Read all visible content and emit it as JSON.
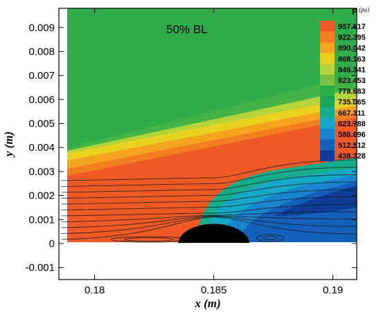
{
  "chart_data": {
    "type": "heatmap",
    "title": "",
    "annotation": "50% BL",
    "xlabel": "x (m)",
    "ylabel": "y (m)",
    "xlim": [
      0.1785,
      0.191
    ],
    "ylim": [
      -0.0015,
      0.0098
    ],
    "x_ticks": [
      0.18,
      0.185,
      0.19
    ],
    "x_tick_labels": [
      "0.18",
      "0.185",
      "0.19"
    ],
    "y_ticks": [
      -0.001,
      0,
      0.001,
      0.002,
      0.003,
      0.004,
      0.005,
      0.006,
      0.007,
      0.008,
      0.009
    ],
    "y_tick_labels": [
      "-0.001",
      "0",
      "0.001",
      "0.002",
      "0.003",
      "0.004",
      "0.005",
      "0.006",
      "0.007",
      "0.008",
      "0.009"
    ],
    "colorbar": {
      "title": "P",
      "unit": "(pa)",
      "placement": "top-right",
      "levels": [
        {
          "value": 957.617,
          "label": "957.617",
          "color": "#ef5a26"
        },
        {
          "value": 922.395,
          "label": "922.395",
          "color": "#f37e22"
        },
        {
          "value": 890.042,
          "label": "890.042",
          "color": "#f6a31f"
        },
        {
          "value": 868.163,
          "label": "868.163",
          "color": "#e9d11f"
        },
        {
          "value": 846.341,
          "label": "846.341",
          "color": "#b5d43a"
        },
        {
          "value": 823.453,
          "label": "823.453",
          "color": "#7cc242"
        },
        {
          "value": 778.683,
          "label": "778.683",
          "color": "#2fad4a"
        },
        {
          "value": 735.065,
          "label": "735.065",
          "color": "#1aa757"
        },
        {
          "value": 667.311,
          "label": "667.311",
          "color": "#18ad8a"
        },
        {
          "value": 623.788,
          "label": "623.788",
          "color": "#15a8c8"
        },
        {
          "value": 586.696,
          "label": "586.696",
          "color": "#1985d0"
        },
        {
          "value": 512.512,
          "label": "512.512",
          "color": "#1560ba"
        },
        {
          "value": 438.328,
          "label": "438.328",
          "color": "#0f3c96"
        }
      ]
    },
    "geometry": {
      "bump_center_x": 0.185,
      "bump_half_width": 0.0015,
      "bump_height": 0.00085,
      "domain_x_start": 0.1786
    },
    "grid": false
  }
}
